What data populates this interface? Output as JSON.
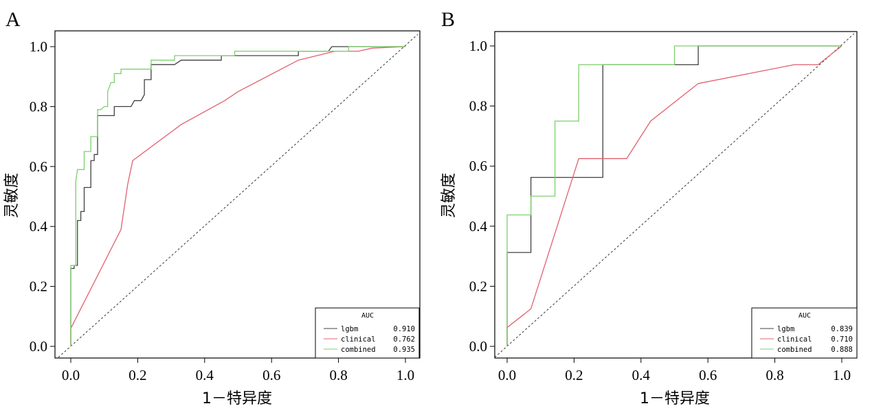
{
  "chart_data": [
    {
      "type": "line",
      "panel_label": "A",
      "xlabel": "1－特异度",
      "ylabel": "灵敏度",
      "xlim": [
        0,
        1
      ],
      "ylim": [
        0,
        1
      ],
      "xticks": [
        "0.0",
        "0.2",
        "0.4",
        "0.6",
        "0.8",
        "1.0"
      ],
      "yticks": [
        "0.0",
        "0.2",
        "0.4",
        "0.6",
        "0.8",
        "1.0"
      ],
      "legend": {
        "title": "AUC",
        "placement": "bottom-right"
      },
      "reference_line": {
        "style": "dashed",
        "from": [
          0,
          0
        ],
        "to": [
          1,
          1
        ]
      },
      "series": [
        {
          "name": "lgbm",
          "auc": "0.910",
          "color": "#404040",
          "points": [
            [
              0,
              0
            ],
            [
              0,
              0.26
            ],
            [
              0.01,
              0.26
            ],
            [
              0.01,
              0.27
            ],
            [
              0.02,
              0.27
            ],
            [
              0.02,
              0.42
            ],
            [
              0.03,
              0.42
            ],
            [
              0.03,
              0.45
            ],
            [
              0.04,
              0.45
            ],
            [
              0.04,
              0.53
            ],
            [
              0.06,
              0.53
            ],
            [
              0.06,
              0.62
            ],
            [
              0.07,
              0.62
            ],
            [
              0.07,
              0.64
            ],
            [
              0.08,
              0.64
            ],
            [
              0.08,
              0.77
            ],
            [
              0.13,
              0.77
            ],
            [
              0.13,
              0.8
            ],
            [
              0.18,
              0.8
            ],
            [
              0.19,
              0.82
            ],
            [
              0.21,
              0.82
            ],
            [
              0.22,
              0.84
            ],
            [
              0.22,
              0.89
            ],
            [
              0.24,
              0.89
            ],
            [
              0.24,
              0.94
            ],
            [
              0.31,
              0.94
            ],
            [
              0.33,
              0.955
            ],
            [
              0.45,
              0.955
            ],
            [
              0.45,
              0.97
            ],
            [
              0.68,
              0.97
            ],
            [
              0.68,
              0.985
            ],
            [
              0.77,
              0.985
            ],
            [
              0.78,
              1.0
            ],
            [
              1.0,
              1.0
            ]
          ]
        },
        {
          "name": "clinical",
          "auc": "0.762",
          "color": "#e0606e",
          "points": [
            [
              0,
              0
            ],
            [
              0,
              0.06
            ],
            [
              0.15,
              0.39
            ],
            [
              0.17,
              0.54
            ],
            [
              0.185,
              0.62
            ],
            [
              0.33,
              0.74
            ],
            [
              0.46,
              0.82
            ],
            [
              0.5,
              0.85
            ],
            [
              0.68,
              0.955
            ],
            [
              0.79,
              0.985
            ],
            [
              0.86,
              0.985
            ],
            [
              0.9,
              0.995
            ],
            [
              1.0,
              1.0
            ]
          ]
        },
        {
          "name": "combined",
          "auc": "0.935",
          "color": "#7ccf6c",
          "points": [
            [
              0,
              0
            ],
            [
              0,
              0.27
            ],
            [
              0.015,
              0.27
            ],
            [
              0.015,
              0.55
            ],
            [
              0.02,
              0.59
            ],
            [
              0.04,
              0.59
            ],
            [
              0.04,
              0.65
            ],
            [
              0.06,
              0.65
            ],
            [
              0.06,
              0.7
            ],
            [
              0.08,
              0.7
            ],
            [
              0.08,
              0.79
            ],
            [
              0.09,
              0.79
            ],
            [
              0.1,
              0.8
            ],
            [
              0.11,
              0.8
            ],
            [
              0.11,
              0.85
            ],
            [
              0.12,
              0.88
            ],
            [
              0.13,
              0.88
            ],
            [
              0.13,
              0.91
            ],
            [
              0.15,
              0.91
            ],
            [
              0.15,
              0.925
            ],
            [
              0.24,
              0.925
            ],
            [
              0.24,
              0.955
            ],
            [
              0.31,
              0.955
            ],
            [
              0.31,
              0.97
            ],
            [
              0.49,
              0.97
            ],
            [
              0.49,
              0.985
            ],
            [
              0.83,
              0.985
            ],
            [
              0.83,
              1.0
            ],
            [
              1.0,
              1.0
            ]
          ]
        }
      ]
    },
    {
      "type": "line",
      "panel_label": "B",
      "xlabel": "1－特异度",
      "ylabel": "灵敏度",
      "xlim": [
        0,
        1
      ],
      "ylim": [
        0,
        1
      ],
      "xticks": [
        "0.0",
        "0.2",
        "0.4",
        "0.6",
        "0.8",
        "1.0"
      ],
      "yticks": [
        "0.0",
        "0.2",
        "0.4",
        "0.6",
        "0.8",
        "1.0"
      ],
      "legend": {
        "title": "AUC",
        "placement": "bottom-right"
      },
      "reference_line": {
        "style": "dashed",
        "from": [
          0,
          0
        ],
        "to": [
          1,
          1
        ]
      },
      "series": [
        {
          "name": "lgbm",
          "auc": "0.839",
          "color": "#404040",
          "points": [
            [
              0,
              0
            ],
            [
              0,
              0.3125
            ],
            [
              0.071,
              0.3125
            ],
            [
              0.071,
              0.5625
            ],
            [
              0.286,
              0.5625
            ],
            [
              0.286,
              0.9375
            ],
            [
              0.571,
              0.9375
            ],
            [
              0.571,
              1.0
            ],
            [
              1.0,
              1.0
            ]
          ]
        },
        {
          "name": "clinical",
          "auc": "0.710",
          "color": "#e0606e",
          "points": [
            [
              0,
              0
            ],
            [
              0,
              0.0625
            ],
            [
              0.071,
              0.125
            ],
            [
              0.214,
              0.625
            ],
            [
              0.357,
              0.625
            ],
            [
              0.429,
              0.75
            ],
            [
              0.571,
              0.875
            ],
            [
              0.857,
              0.9375
            ],
            [
              0.929,
              0.9375
            ],
            [
              1.0,
              1.0
            ]
          ]
        },
        {
          "name": "combined",
          "auc": "0.888",
          "color": "#7ccf6c",
          "points": [
            [
              0,
              0
            ],
            [
              0,
              0.4375
            ],
            [
              0.071,
              0.4375
            ],
            [
              0.071,
              0.5
            ],
            [
              0.143,
              0.5
            ],
            [
              0.143,
              0.75
            ],
            [
              0.214,
              0.75
            ],
            [
              0.214,
              0.9375
            ],
            [
              0.5,
              0.9375
            ],
            [
              0.5,
              1.0
            ],
            [
              1.0,
              1.0
            ]
          ]
        }
      ]
    }
  ]
}
